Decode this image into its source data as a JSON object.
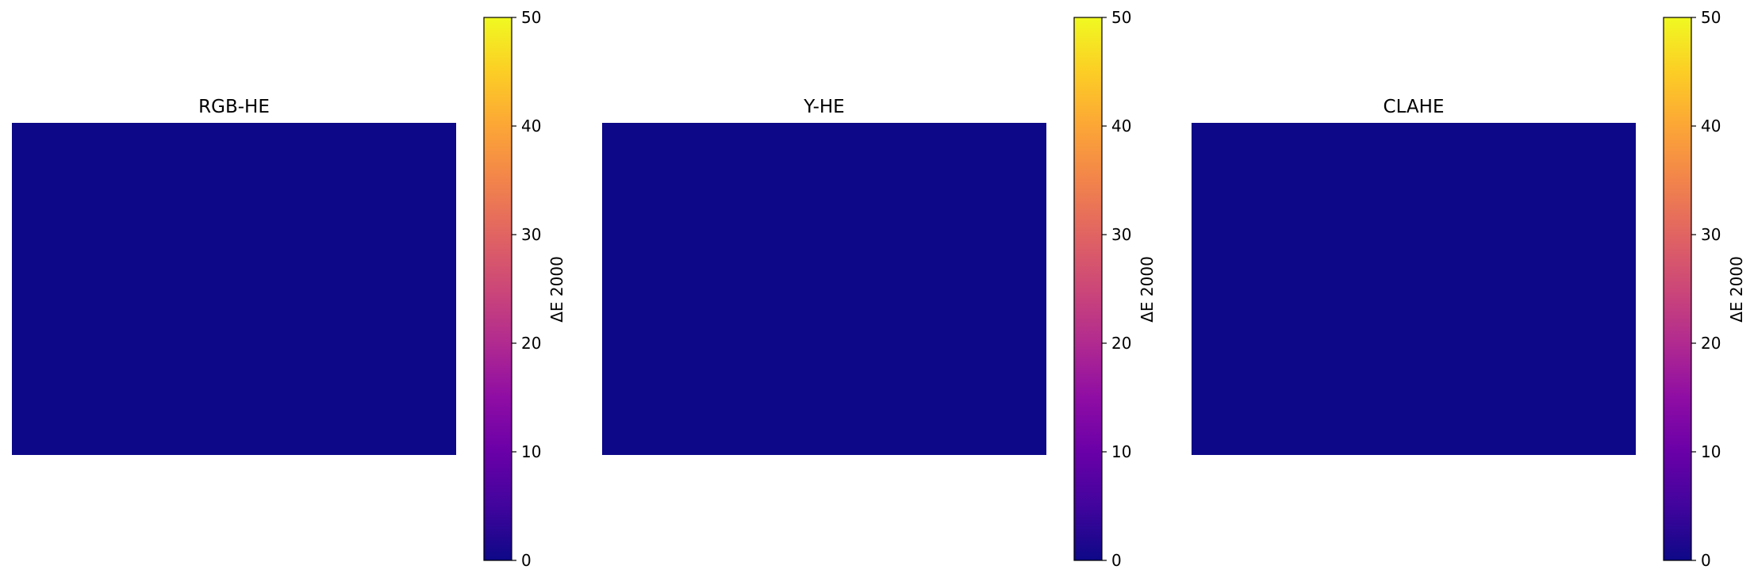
{
  "chart_data": [
    {
      "type": "heatmap",
      "title": "RGB-HE",
      "value": 0,
      "colorbar": {
        "label": "ΔE 2000",
        "range": [
          0,
          50
        ],
        "ticks": [
          "0",
          "10",
          "20",
          "30",
          "40",
          "50"
        ],
        "colormap": "plasma"
      },
      "axes_visible": false
    },
    {
      "type": "heatmap",
      "title": "Y-HE",
      "value": 0,
      "colorbar": {
        "label": "ΔE 2000",
        "range": [
          0,
          50
        ],
        "ticks": [
          "0",
          "10",
          "20",
          "30",
          "40",
          "50"
        ],
        "colormap": "plasma"
      },
      "axes_visible": false
    },
    {
      "type": "heatmap",
      "title": "CLAHE",
      "value": 0,
      "colorbar": {
        "label": "ΔE 2000",
        "range": [
          0,
          50
        ],
        "ticks": [
          "0",
          "10",
          "20",
          "30",
          "40",
          "50"
        ],
        "colormap": "plasma"
      },
      "axes_visible": false
    }
  ],
  "colors": {
    "plasma_0": "#0d0887",
    "plasma_10": "#5302a3",
    "plasma_20": "#8b0aa5",
    "plasma_30": "#b83289",
    "plasma_40": "#db5c68",
    "plasma_50": "#f48849",
    "plasma_60": "#febc2a",
    "plasma_100": "#f0f921"
  }
}
